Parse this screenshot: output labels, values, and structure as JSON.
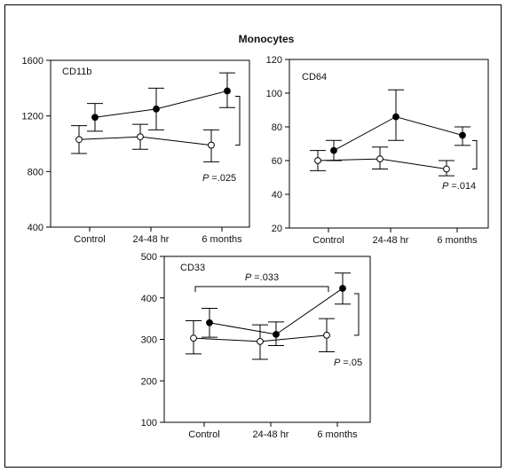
{
  "figure": {
    "title": "Monocytes",
    "categories": [
      "Control",
      "24-48 hr",
      "6 months"
    ]
  },
  "chart_data": [
    {
      "type": "line",
      "title": "CD11b",
      "ylim": [
        400,
        1600
      ],
      "yticks": [
        400,
        800,
        1200,
        1600
      ],
      "categories": [
        "Control",
        "24-48 hr",
        "6 months"
      ],
      "series": [
        {
          "marker": "filled",
          "values": [
            1190,
            1250,
            1380
          ],
          "lower": [
            1090,
            1100,
            1260
          ],
          "upper": [
            1290,
            1400,
            1510
          ]
        },
        {
          "marker": "open",
          "values": [
            1030,
            1050,
            990
          ],
          "lower": [
            930,
            960,
            870
          ],
          "upper": [
            1130,
            1140,
            1100
          ]
        }
      ],
      "annotations": [
        {
          "label": "P",
          "value": "=.025",
          "bracket": "right",
          "from": 1380,
          "to": 990
        }
      ]
    },
    {
      "type": "line",
      "title": "CD64",
      "ylim": [
        20,
        120
      ],
      "yticks": [
        20,
        40,
        60,
        80,
        100,
        120
      ],
      "categories": [
        "Control",
        "24-48 hr",
        "6 months"
      ],
      "series": [
        {
          "marker": "filled",
          "values": [
            66,
            86,
            75
          ],
          "lower": [
            60,
            72,
            69
          ],
          "upper": [
            72,
            102,
            80
          ]
        },
        {
          "marker": "open",
          "values": [
            60,
            61,
            55
          ],
          "lower": [
            54,
            55,
            51
          ],
          "upper": [
            66,
            68,
            60
          ]
        }
      ],
      "annotations": [
        {
          "label": "P",
          "value": "=.014",
          "bracket": "right",
          "from": 75,
          "to": 55
        }
      ]
    },
    {
      "type": "line",
      "title": "CD33",
      "ylim": [
        100,
        500
      ],
      "yticks": [
        100,
        200,
        300,
        400,
        500
      ],
      "categories": [
        "Control",
        "24-48 hr",
        "6 months"
      ],
      "series": [
        {
          "marker": "filled",
          "values": [
            340,
            312,
            423
          ],
          "lower": [
            305,
            285,
            385
          ],
          "upper": [
            375,
            342,
            460
          ]
        },
        {
          "marker": "open",
          "values": [
            303,
            295,
            310
          ],
          "lower": [
            265,
            252,
            270
          ],
          "upper": [
            345,
            335,
            350
          ]
        }
      ],
      "annotations": [
        {
          "label": "P",
          "value": "=.033",
          "bracket": "top",
          "between": [
            "Control",
            "6 months"
          ]
        },
        {
          "label": "P",
          "value": "=.05",
          "bracket": "right",
          "from": 423,
          "to": 310
        }
      ]
    }
  ]
}
